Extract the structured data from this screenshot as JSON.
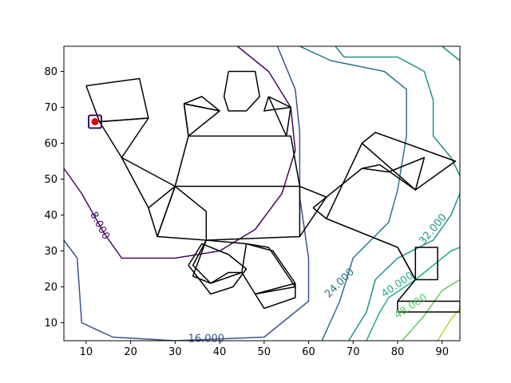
{
  "chart_data": {
    "type": "contour",
    "title": "",
    "xlabel": "",
    "ylabel": "",
    "xlim": [
      5,
      94
    ],
    "ylim": [
      5,
      87
    ],
    "xticks": [
      10,
      20,
      30,
      40,
      50,
      60,
      70,
      80,
      90
    ],
    "yticks": [
      10,
      20,
      30,
      40,
      50,
      60,
      70,
      80
    ],
    "grid": false,
    "colors": {
      "c8": "#46085c",
      "c16": "#3b528b",
      "c24": "#2c728e",
      "c32": "#21918c",
      "c40": "#28ae80",
      "c48": "#5ec962",
      "c56": "#addc30",
      "marker": "#e00000",
      "outline": "#000000"
    },
    "contours": [
      {
        "level": "8.000",
        "color": "#46085c",
        "points": [
          [
            5,
            53
          ],
          [
            9,
            46
          ],
          [
            14,
            35
          ],
          [
            18,
            28
          ],
          [
            30,
            28
          ],
          [
            40,
            30
          ],
          [
            48,
            36
          ],
          [
            54,
            46
          ],
          [
            57,
            58
          ],
          [
            56,
            70
          ],
          [
            51,
            80
          ],
          [
            44,
            87
          ]
        ]
      },
      {
        "level": "16.000",
        "color": "#3b528b",
        "points": [
          [
            5,
            33
          ],
          [
            8,
            28
          ],
          [
            9,
            10
          ],
          [
            16,
            6
          ],
          [
            30,
            5
          ],
          [
            50,
            6
          ],
          [
            60,
            16
          ],
          [
            60,
            28
          ],
          [
            58,
            45
          ],
          [
            58,
            63
          ],
          [
            57,
            75
          ],
          [
            53,
            87
          ]
        ]
      },
      {
        "level": "24.000",
        "color": "#2c728e",
        "points": [
          [
            63,
            5
          ],
          [
            67,
            16
          ],
          [
            70,
            28
          ],
          [
            78,
            38
          ],
          [
            80,
            47
          ],
          [
            82,
            62
          ],
          [
            82,
            75
          ],
          [
            77,
            80
          ],
          [
            65,
            83
          ],
          [
            58,
            87
          ]
        ]
      },
      {
        "level": "32.000",
        "color": "#21918c",
        "points": [
          [
            69,
            5
          ],
          [
            73,
            13
          ],
          [
            75,
            22
          ],
          [
            80,
            28
          ],
          [
            88,
            33
          ],
          [
            92,
            40
          ],
          [
            94,
            46
          ]
        ]
      },
      {
        "level": "32.000",
        "color": "#21918c",
        "points": [
          [
            66,
            87
          ],
          [
            68,
            84
          ],
          [
            80,
            84
          ],
          [
            86,
            80
          ],
          [
            88,
            72
          ],
          [
            88,
            62
          ],
          [
            92,
            56
          ],
          [
            94,
            51
          ]
        ]
      },
      {
        "level": "32.000",
        "color": "#21918c",
        "points": [
          [
            90,
            87
          ],
          [
            94,
            83
          ]
        ]
      },
      {
        "level": "40.000",
        "color": "#28ae80",
        "points": [
          [
            73,
            5
          ],
          [
            76,
            13
          ],
          [
            78,
            17
          ],
          [
            84,
            22
          ],
          [
            92,
            30
          ],
          [
            94,
            31
          ]
        ]
      },
      {
        "level": "48.000",
        "color": "#5ec962",
        "points": [
          [
            81,
            5
          ],
          [
            86,
            12
          ],
          [
            90,
            19
          ],
          [
            94,
            22
          ]
        ]
      },
      {
        "level": "56.000",
        "color": "#addc30",
        "points": [
          [
            89,
            5
          ],
          [
            92,
            11
          ],
          [
            94,
            14
          ]
        ]
      }
    ],
    "contour_labels": [
      {
        "text": "8.000",
        "x": 13,
        "y": 37,
        "angle": 62,
        "color": "#46085c"
      },
      {
        "text": "16.000",
        "x": 37,
        "y": 5.5,
        "angle": 0,
        "color": "#3b528b"
      },
      {
        "text": "24.000",
        "x": 67,
        "y": 21,
        "angle": -45,
        "color": "#2c728e"
      },
      {
        "text": "32.000",
        "x": 88,
        "y": 36,
        "angle": -50,
        "color": "#21918c"
      },
      {
        "text": "40.000",
        "x": 80,
        "y": 20.5,
        "angle": -35,
        "color": "#28ae80"
      },
      {
        "text": "48.000",
        "x": 83,
        "y": 14.5,
        "angle": -33,
        "color": "#5ec962"
      }
    ],
    "outline_polylines": [
      [
        [
          10,
          76
        ],
        [
          22,
          78
        ],
        [
          24,
          67
        ],
        [
          13,
          66
        ],
        [
          10,
          76
        ]
      ],
      [
        [
          13,
          66
        ],
        [
          24,
          67
        ],
        [
          18,
          56
        ],
        [
          13,
          66
        ]
      ],
      [
        [
          18,
          56
        ],
        [
          24,
          42
        ],
        [
          30,
          48
        ],
        [
          18,
          56
        ]
      ],
      [
        [
          24,
          42
        ],
        [
          26,
          34
        ],
        [
          30,
          48
        ]
      ],
      [
        [
          30,
          48
        ],
        [
          33,
          62
        ],
        [
          56,
          62
        ],
        [
          58,
          48
        ],
        [
          30,
          48
        ]
      ],
      [
        [
          30,
          48
        ],
        [
          37,
          41
        ],
        [
          37,
          33
        ],
        [
          26,
          34
        ],
        [
          30,
          48
        ]
      ],
      [
        [
          37,
          33
        ],
        [
          58,
          34
        ],
        [
          58,
          48
        ]
      ],
      [
        [
          58,
          48
        ],
        [
          64,
          45
        ],
        [
          58,
          34
        ]
      ],
      [
        [
          33,
          62
        ],
        [
          32,
          71
        ],
        [
          40,
          69
        ],
        [
          36,
          73
        ],
        [
          32,
          71
        ]
      ],
      [
        [
          40,
          69
        ],
        [
          32,
          71
        ],
        [
          33,
          62
        ]
      ],
      [
        [
          40,
          69
        ],
        [
          33,
          62
        ]
      ],
      [
        [
          42,
          80
        ],
        [
          48,
          80
        ],
        [
          49,
          73
        ],
        [
          46,
          69
        ],
        [
          42,
          69
        ],
        [
          41,
          73
        ],
        [
          42,
          80
        ]
      ],
      [
        [
          51,
          73
        ],
        [
          56,
          70
        ],
        [
          55,
          62
        ],
        [
          51,
          73
        ]
      ],
      [
        [
          51,
          73
        ],
        [
          50,
          69
        ],
        [
          56,
          70
        ]
      ],
      [
        [
          37,
          33
        ],
        [
          46,
          32
        ],
        [
          51,
          31
        ],
        [
          57,
          20
        ],
        [
          48,
          18
        ],
        [
          45,
          24
        ],
        [
          42,
          24
        ],
        [
          38,
          21
        ],
        [
          34,
          23
        ],
        [
          37,
          33
        ]
      ],
      [
        [
          46,
          32
        ],
        [
          45,
          24
        ],
        [
          38,
          21
        ],
        [
          34,
          26
        ],
        [
          37,
          33
        ]
      ],
      [
        [
          33,
          26
        ],
        [
          38,
          18
        ],
        [
          43,
          20
        ],
        [
          46,
          25
        ],
        [
          42,
          29
        ],
        [
          36,
          32
        ],
        [
          33,
          26
        ]
      ],
      [
        [
          46,
          32
        ],
        [
          52,
          30
        ],
        [
          57,
          21
        ],
        [
          48,
          18
        ],
        [
          50,
          14
        ],
        [
          57,
          17
        ],
        [
          57,
          21
        ]
      ],
      [
        [
          61,
          42
        ],
        [
          72,
          53
        ],
        [
          78,
          52
        ],
        [
          86,
          56
        ],
        [
          84,
          47
        ],
        [
          76,
          54
        ],
        [
          72,
          53
        ]
      ],
      [
        [
          61,
          42
        ],
        [
          64,
          39
        ],
        [
          80,
          31
        ],
        [
          84,
          22
        ],
        [
          84,
          31
        ],
        [
          89,
          31
        ],
        [
          89,
          22
        ],
        [
          84,
          22
        ]
      ],
      [
        [
          64,
          39
        ],
        [
          72,
          60
        ],
        [
          75,
          63
        ],
        [
          93,
          55
        ],
        [
          84,
          47
        ],
        [
          72,
          60
        ]
      ],
      [
        [
          80,
          31
        ],
        [
          84,
          22
        ]
      ],
      [
        [
          80,
          16
        ],
        [
          94,
          16
        ],
        [
          94,
          13
        ],
        [
          80,
          13
        ],
        [
          80,
          16
        ]
      ],
      [
        [
          80,
          16
        ],
        [
          84,
          22
        ]
      ]
    ],
    "small_square": {
      "x": 12,
      "y": 66
    },
    "marker_point": {
      "x": 12,
      "y": 66
    }
  }
}
